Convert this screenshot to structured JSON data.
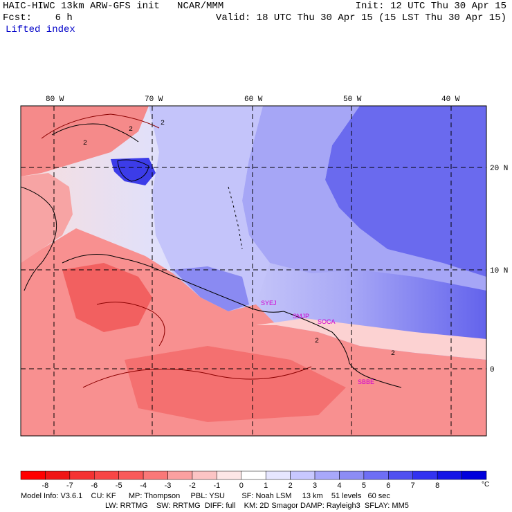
{
  "header": {
    "title": "HAIC-HIWC 13km ARW-GFS init   NCAR/MMM",
    "forecast": "Fcst:    6 h",
    "field": "Lifted index",
    "init": "Init: 12 UTC Thu 30 Apr 15",
    "valid": "Valid: 18 UTC Thu 30 Apr 15 (15 LST Thu 30 Apr 15)"
  },
  "map": {
    "lon_labels": [
      "80 W",
      "70 W",
      "60 W",
      "50 W",
      "40 W"
    ],
    "lat_labels": [
      "20 N",
      "10 N",
      "0"
    ],
    "stations": [
      "SYEJ",
      "SMJP",
      "SOCA",
      "SBBE"
    ],
    "contour_labels": [
      "2",
      "2",
      "2",
      "2",
      "2"
    ]
  },
  "colorbar": {
    "ticks": [
      "-8",
      "-7",
      "-6",
      "-5",
      "-4",
      "-3",
      "-2",
      "-1",
      "0",
      "1",
      "2",
      "3",
      "4",
      "5",
      "6",
      "7",
      "8"
    ],
    "unit": "°C",
    "colors": [
      "#ff0000",
      "#f01414",
      "#f53232",
      "#f84646",
      "#f95a5a",
      "#fa7878",
      "#fba0a0",
      "#fcc4c4",
      "#fde6e6",
      "#ffffff",
      "#e6e6ff",
      "#c8c8ff",
      "#a8a8fa",
      "#8c8cf5",
      "#6e6ef5",
      "#5050f0",
      "#3232f0",
      "#1414e6",
      "#0000dc"
    ]
  },
  "model_info": {
    "line1": "Model Info: V3.6.1    CU: KF      MP: Thompson     PBL: YSU        SF: Noah LSM     13 km    51 levels   60 sec",
    "line2": "LW: RRTMG    SW: RRTMG  DIFF: full    KM: 2D Smagor DAMP: Rayleigh3  SFLAY: MM5"
  }
}
